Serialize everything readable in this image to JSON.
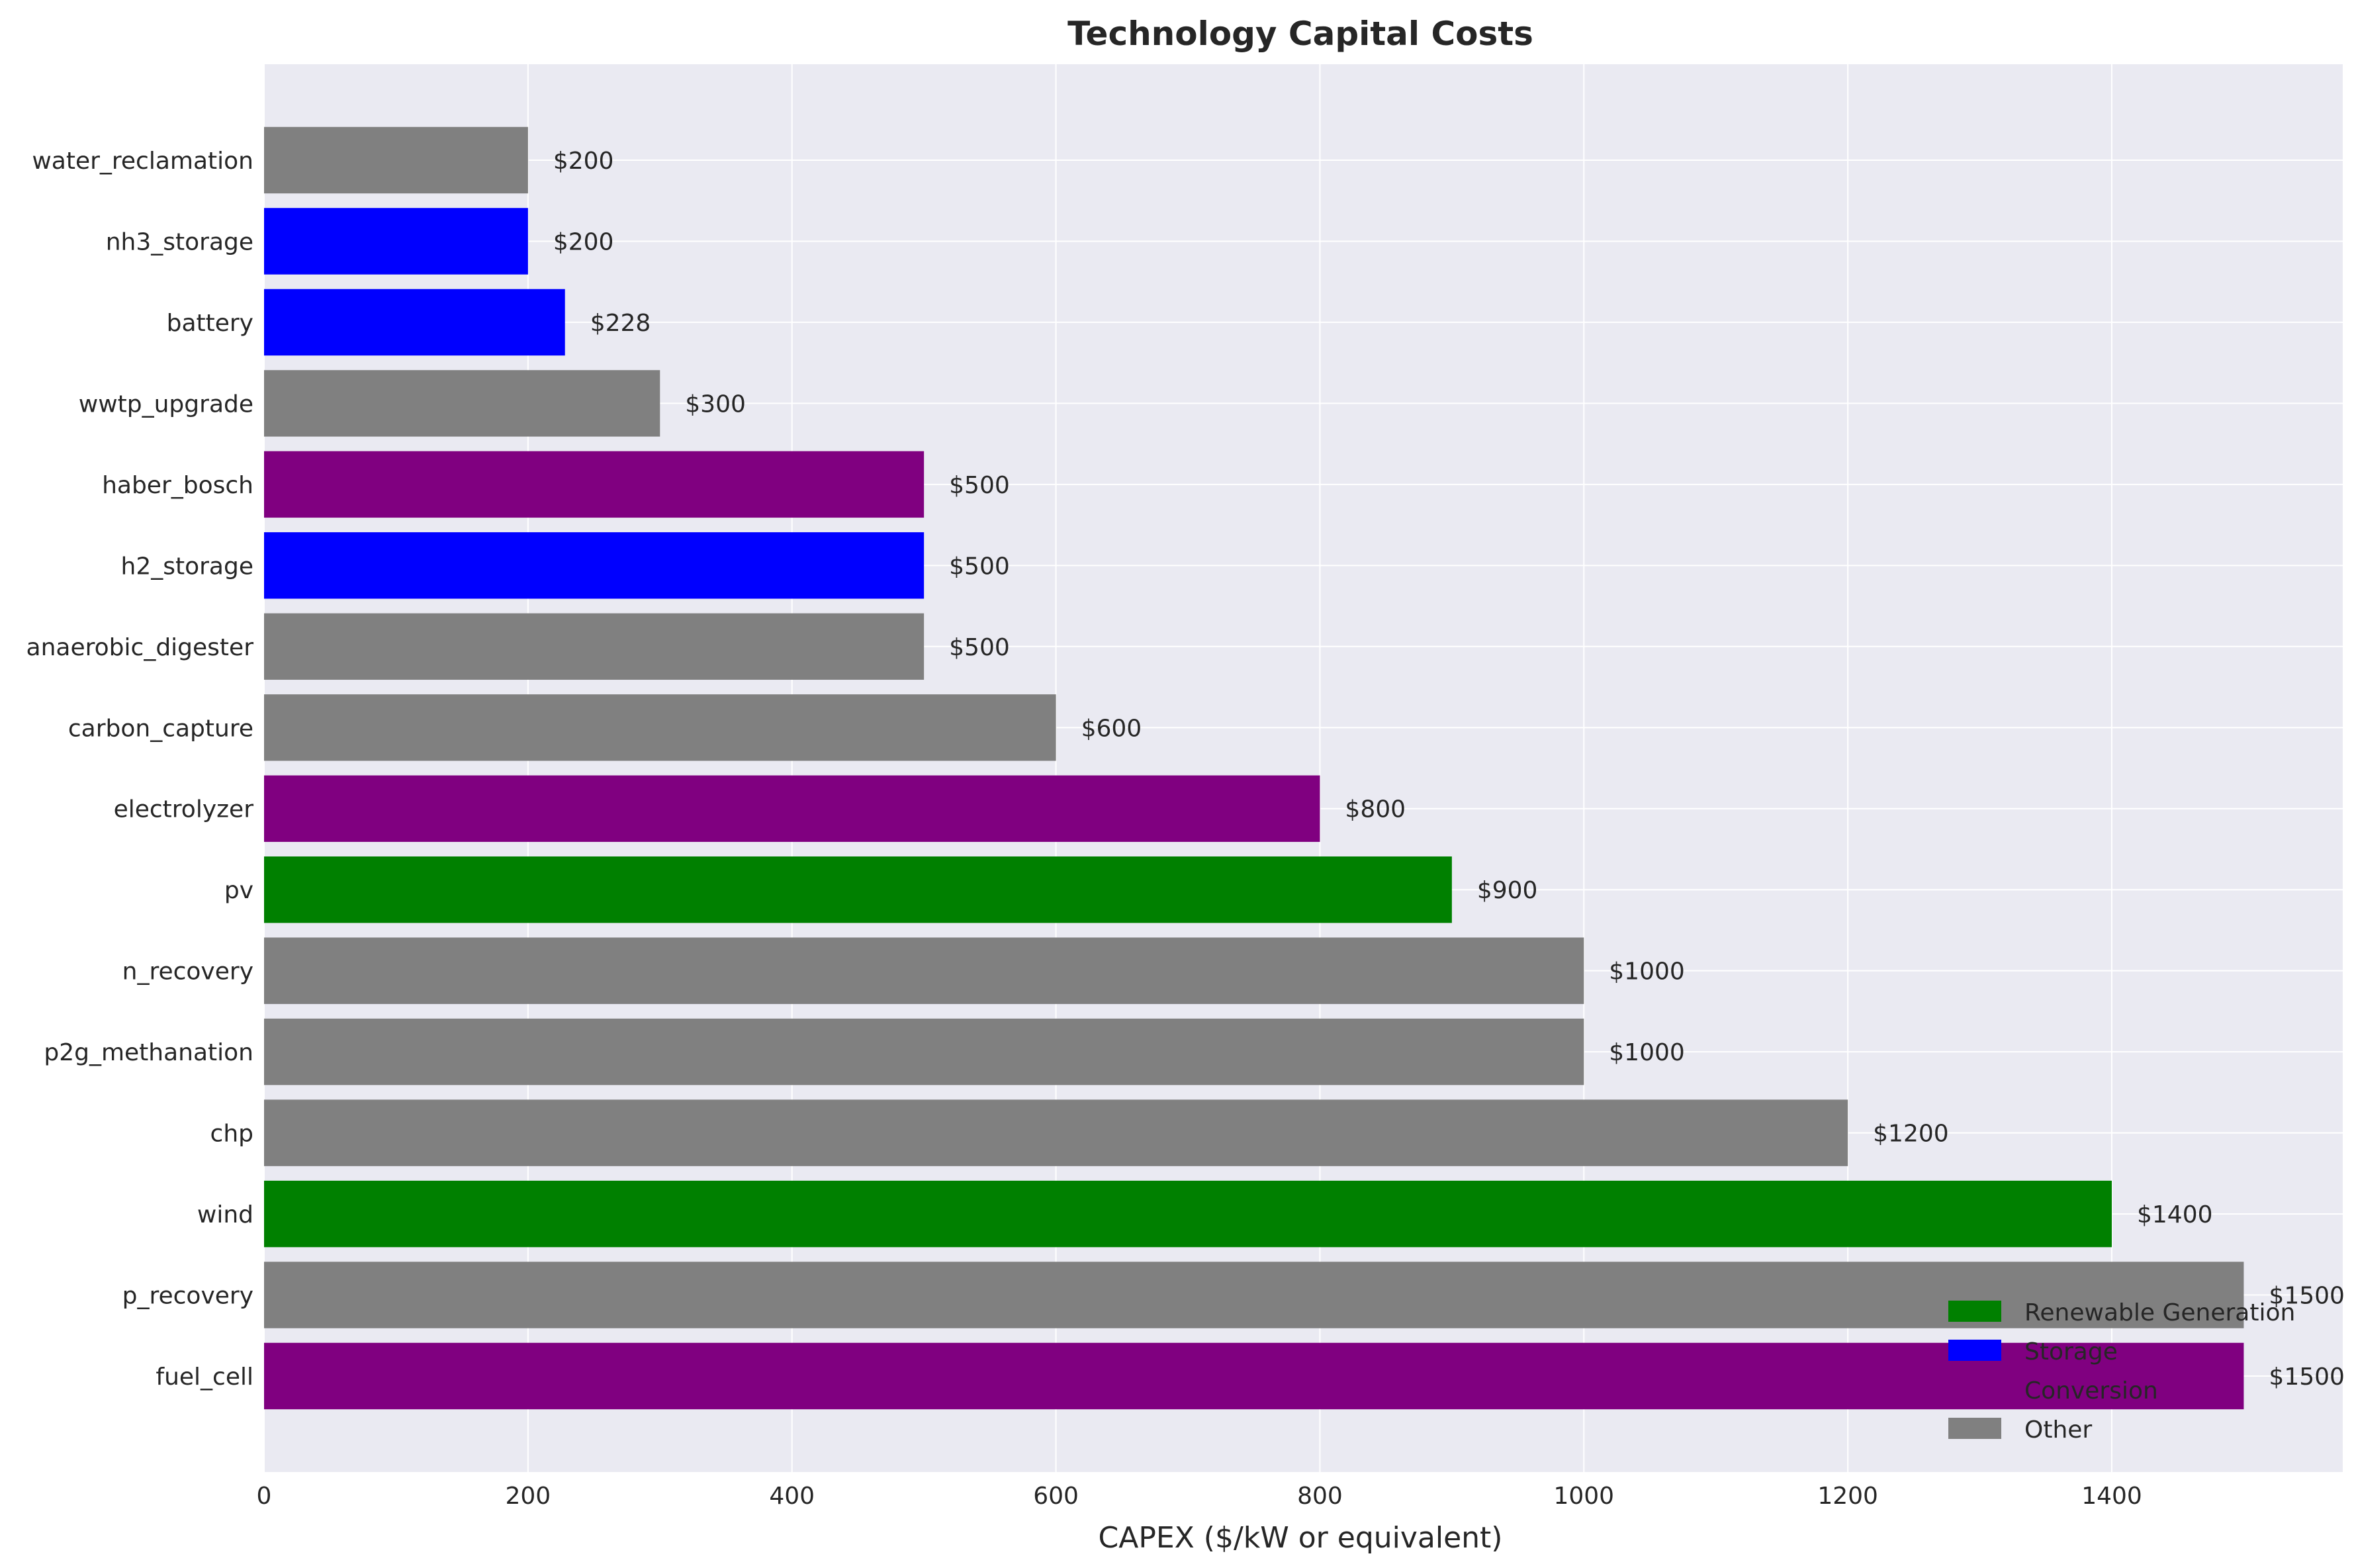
{
  "chart_data": {
    "type": "bar",
    "orientation": "horizontal",
    "title": "Technology Capital Costs",
    "xlabel": "CAPEX ($/kW or equivalent)",
    "ylabel": "",
    "xlim": [
      0,
      1575
    ],
    "xticks": [
      0,
      200,
      400,
      600,
      800,
      1000,
      1200,
      1400
    ],
    "grid": true,
    "legend_position": "bottom-right",
    "value_prefix": "$",
    "categories": [
      "water_reclamation",
      "nh3_storage",
      "battery",
      "wwtp_upgrade",
      "haber_bosch",
      "h2_storage",
      "anaerobic_digester",
      "carbon_capture",
      "electrolyzer",
      "pv",
      "n_recovery",
      "p2g_methanation",
      "chp",
      "wind",
      "p_recovery",
      "fuel_cell"
    ],
    "values": [
      200,
      200,
      228,
      300,
      500,
      500,
      500,
      600,
      800,
      900,
      1000,
      1000,
      1200,
      1400,
      1500,
      1500
    ],
    "value_labels": [
      "$200",
      "$200",
      "$228",
      "$300",
      "$500",
      "$500",
      "$500",
      "$600",
      "$800",
      "$900",
      "$1000",
      "$1000",
      "$1200",
      "$1400",
      "$1500",
      "$1500"
    ],
    "groups": [
      "Other",
      "Storage",
      "Storage",
      "Other",
      "Conversion",
      "Storage",
      "Other",
      "Other",
      "Conversion",
      "Renewable Generation",
      "Other",
      "Other",
      "Other",
      "Renewable Generation",
      "Other",
      "Conversion"
    ],
    "legend": [
      {
        "name": "Renewable Generation",
        "color": "#008000"
      },
      {
        "name": "Storage",
        "color": "#0000ff"
      },
      {
        "name": "Conversion",
        "color": "#800080"
      },
      {
        "name": "Other",
        "color": "#808080"
      }
    ],
    "colors": {
      "plot_background": "#eaeaf2",
      "grid": "#ffffff",
      "text": "#262626"
    }
  }
}
